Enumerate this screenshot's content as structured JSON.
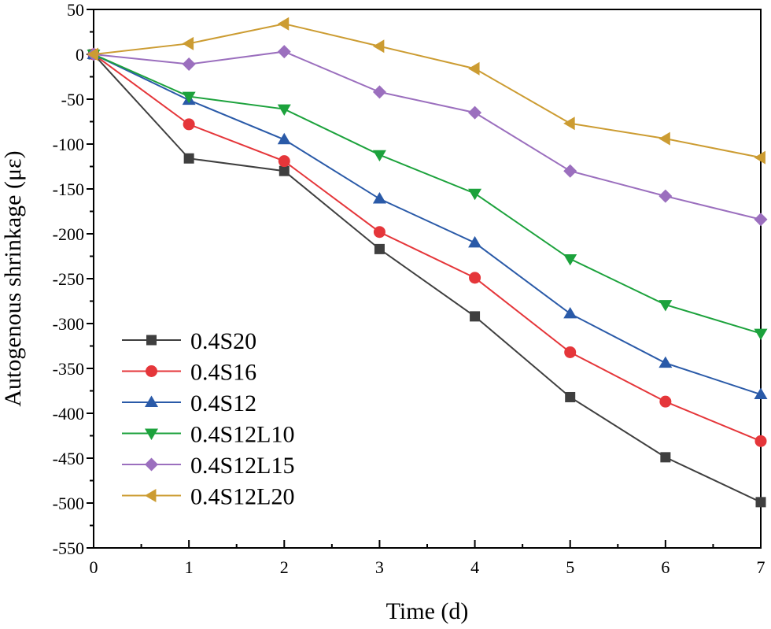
{
  "chart_data": {
    "type": "line",
    "title": "",
    "xlabel": "Time (d)",
    "ylabel": "Autogenous shrinkage (με)",
    "xlim": [
      0,
      7
    ],
    "ylim": [
      -550,
      50
    ],
    "xticks": [
      0,
      1,
      2,
      3,
      4,
      5,
      6,
      7
    ],
    "yticks": [
      50,
      0,
      -50,
      -100,
      -150,
      -200,
      -250,
      -300,
      -350,
      -400,
      -450,
      -500,
      -550
    ],
    "x": [
      0,
      1,
      2,
      3,
      4,
      5,
      6,
      7
    ],
    "grid": false,
    "legend_position": "lower-left",
    "series": [
      {
        "name": "0.4S20",
        "marker": "square",
        "color": "#3f3f3f",
        "values": [
          0,
          -116,
          -130,
          -217,
          -292,
          -382,
          -449,
          -499
        ]
      },
      {
        "name": "0.4S16",
        "marker": "circle",
        "color": "#e5363a",
        "values": [
          0,
          -78,
          -119,
          -198,
          -249,
          -332,
          -387,
          -431
        ]
      },
      {
        "name": "0.4S12",
        "marker": "triangle-up",
        "color": "#2a5aa8",
        "values": [
          0,
          -51,
          -95,
          -161,
          -210,
          -289,
          -344,
          -379
        ]
      },
      {
        "name": "0.4S12L10",
        "marker": "triangle-down",
        "color": "#1ca23c",
        "values": [
          0,
          -47,
          -61,
          -112,
          -155,
          -228,
          -279,
          -311
        ]
      },
      {
        "name": "0.4S12L15",
        "marker": "diamond",
        "color": "#9b6fbe",
        "values": [
          0,
          -11,
          3,
          -42,
          -65,
          -130,
          -158,
          -184
        ]
      },
      {
        "name": "0.4S12L20",
        "marker": "triangle-left",
        "color": "#cc9c32",
        "values": [
          0,
          12,
          34,
          9,
          -16,
          -77,
          -94,
          -115
        ]
      }
    ]
  }
}
